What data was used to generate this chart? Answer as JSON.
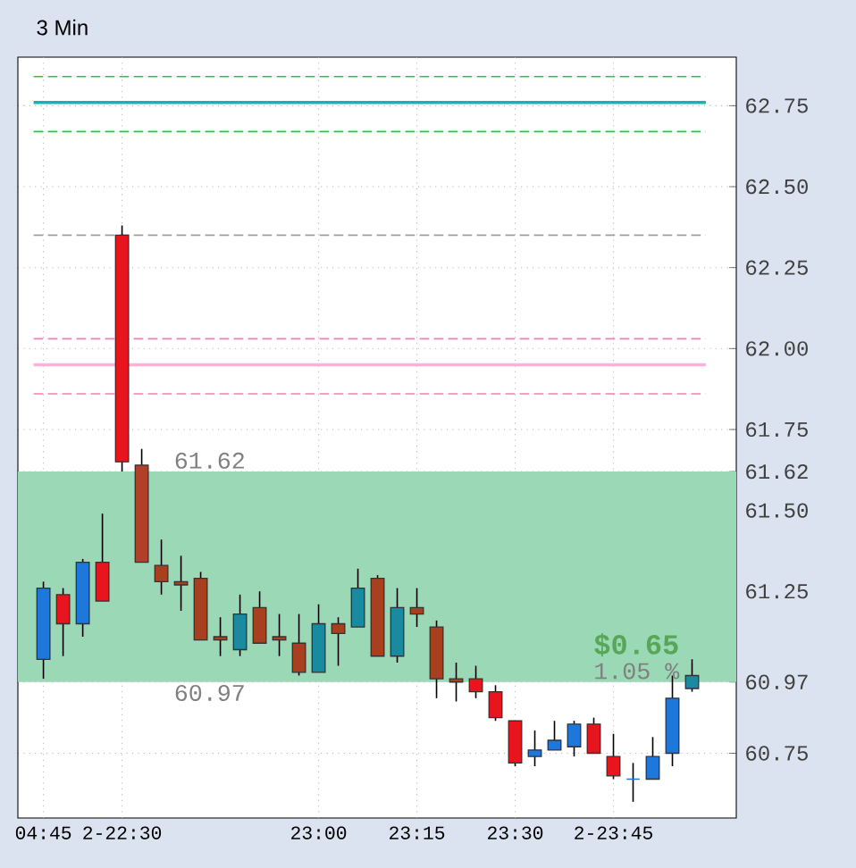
{
  "chart_data": {
    "type": "candlestick",
    "title": "3 Min",
    "categories": [
      "04:45",
      null,
      null,
      null,
      "2-22:30",
      null,
      null,
      null,
      null,
      null,
      null,
      null,
      null,
      null,
      "23:00",
      null,
      null,
      null,
      null,
      "23:15",
      null,
      null,
      null,
      null,
      "23:30",
      null,
      null,
      null,
      null,
      "2-23:45",
      null,
      null,
      null,
      null
    ],
    "ohlc": [
      [
        61.04,
        61.28,
        60.98,
        61.26
      ],
      [
        61.24,
        61.26,
        61.05,
        61.15
      ],
      [
        61.15,
        61.35,
        61.11,
        61.34
      ],
      [
        61.34,
        61.49,
        61.22,
        61.22
      ],
      [
        62.35,
        62.38,
        61.62,
        61.65
      ],
      [
        61.64,
        61.69,
        61.34,
        61.34
      ],
      [
        61.33,
        61.41,
        61.24,
        61.28
      ],
      [
        61.28,
        61.36,
        61.19,
        61.27
      ],
      [
        61.29,
        61.31,
        61.1,
        61.1
      ],
      [
        61.11,
        61.17,
        61.05,
        61.1
      ],
      [
        61.07,
        61.24,
        61.05,
        61.18
      ],
      [
        61.2,
        61.25,
        61.09,
        61.09
      ],
      [
        61.11,
        61.18,
        61.05,
        61.1
      ],
      [
        61.09,
        61.18,
        60.99,
        61.0
      ],
      [
        61.0,
        61.21,
        61.0,
        61.15
      ],
      [
        61.15,
        61.17,
        61.02,
        61.12
      ],
      [
        61.14,
        61.32,
        61.14,
        61.26
      ],
      [
        61.29,
        61.3,
        61.05,
        61.05
      ],
      [
        61.05,
        61.26,
        61.03,
        61.2
      ],
      [
        61.2,
        61.26,
        61.14,
        61.18
      ],
      [
        61.14,
        61.16,
        60.92,
        60.98
      ],
      [
        60.98,
        61.03,
        60.91,
        60.97
      ],
      [
        60.98,
        61.02,
        60.92,
        60.94
      ],
      [
        60.94,
        60.96,
        60.85,
        60.86
      ],
      [
        60.85,
        60.85,
        60.71,
        60.72
      ],
      [
        60.74,
        60.82,
        60.71,
        60.76
      ],
      [
        60.76,
        60.85,
        60.76,
        60.79
      ],
      [
        60.77,
        60.85,
        60.74,
        60.84
      ],
      [
        60.84,
        60.86,
        60.75,
        60.75
      ],
      [
        60.74,
        60.81,
        60.67,
        60.68
      ],
      [
        60.67,
        60.72,
        60.6,
        60.67
      ],
      [
        60.67,
        60.8,
        60.67,
        60.74
      ],
      [
        60.75,
        60.99,
        60.71,
        60.92
      ],
      [
        60.95,
        61.04,
        60.94,
        60.99
      ]
    ],
    "colors": [
      "#1e78dc",
      "#e8141e",
      "#1e78dc",
      "#e8141e",
      "#e8141e",
      "#b0402a",
      "#a84020",
      "#a84020",
      "#a84020",
      "#a84020",
      "#1a8aa0",
      "#a84020",
      "#a84020",
      "#a84020",
      "#1a8aa0",
      "#a84020",
      "#1a8aa0",
      "#a84020",
      "#1a8aa0",
      "#a84020",
      "#a84020",
      "#a84020",
      "#e8141e",
      "#e8141e",
      "#e8141e",
      "#1e78dc",
      "#1e78dc",
      "#1e78dc",
      "#e8141e",
      "#e8141e",
      "#1e78dc",
      "#1e78dc",
      "#1e78dc",
      "#1a8aa0"
    ],
    "ylim": [
      60.55,
      62.9
    ],
    "yticks": [
      60.75,
      {
        "value": 60.97,
        "label": "60.97"
      },
      {
        "value": 61.0,
        "label": null
      },
      61.25,
      {
        "value": 61.5,
        "label": "61.50"
      },
      {
        "value": 61.62,
        "label": "61.62"
      },
      61.75,
      {
        "value": 62.0,
        "label": "62.00"
      },
      62.25,
      {
        "value": 62.5,
        "label": "62.50"
      },
      62.75
    ],
    "grid": true,
    "ref_lines": [
      {
        "axis": "y",
        "value": 62.84,
        "color": "#1ecc3c",
        "line_style": "dashed"
      },
      {
        "axis": "y",
        "value": 62.76,
        "color": "#14b4b4",
        "line_style": "solid"
      },
      {
        "axis": "y",
        "value": 62.67,
        "color": "#1ecc3c",
        "line_style": "dashed"
      },
      {
        "axis": "y",
        "value": 62.35,
        "color": "#a0a0a0",
        "line_style": "dashed"
      },
      {
        "axis": "y",
        "value": 62.03,
        "color": "#f080b0",
        "line_style": "dashed"
      },
      {
        "axis": "y",
        "value": 61.95,
        "color": "#ffb0d8",
        "line_style": "solid"
      },
      {
        "axis": "y",
        "value": 61.86,
        "color": "#f080b0",
        "line_style": "dashed"
      }
    ],
    "bands": [
      {
        "axis": "y",
        "from": 60.97,
        "to": 61.62,
        "color": "#9ad8b6"
      }
    ],
    "annotations": [
      "61.62",
      "60.97",
      "$0.65",
      "1.05 %"
    ]
  }
}
